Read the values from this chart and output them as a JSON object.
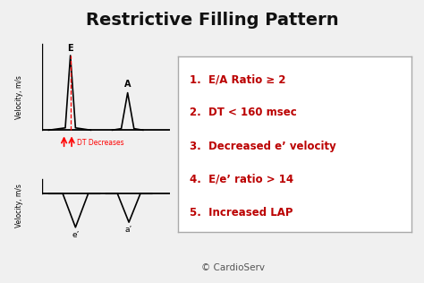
{
  "title": "Restrictive Filling Pattern",
  "title_fontsize": 14,
  "title_fontweight": "bold",
  "background_color": "#f0f0f0",
  "border_color": "#bbbbbb",
  "text_color_dark": "#111111",
  "text_color_red": "#bb0000",
  "bullet_items": [
    "1.  E/A Ratio ≥ 2",
    "2.  DT < 160 msec",
    "3.  Decreased e’ velocity",
    "4.  E/e’ ratio > 14",
    "5.  Increased LAP"
  ],
  "bullet_fontsize": 8.5,
  "copyright_text": "© CardioServ",
  "copyright_fontsize": 7.5,
  "top_chart": {
    "ylabel": "Velocity, m/s",
    "ylabel_fontsize": 5.5,
    "E_label": "E",
    "A_label": "A",
    "dt_label": "DT Decreases",
    "dt_fontsize": 5.5,
    "label_fontsize": 7
  },
  "bottom_chart": {
    "ylabel": "Velocity, m/s",
    "ylabel_fontsize": 5.5,
    "e_label": "e’",
    "a_label": "a’",
    "label_fontsize": 6.5
  }
}
